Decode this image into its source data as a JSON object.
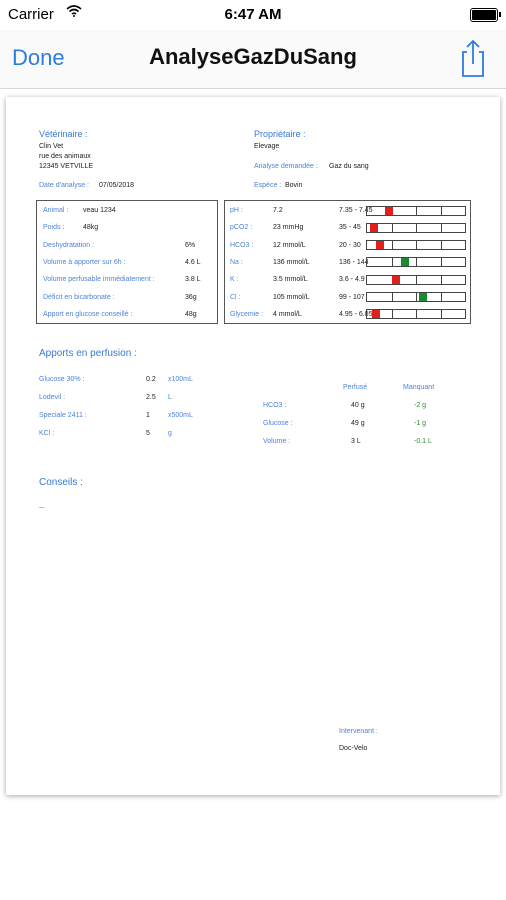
{
  "status_bar": {
    "carrier": "Carrier",
    "time": "6:47 AM"
  },
  "nav": {
    "done": "Done",
    "title": "AnalyseGazDuSang"
  },
  "colors": {
    "accent": "#2b7de1",
    "label_blue": "#4f83d6",
    "marker_red": "#e02020",
    "marker_green": "#1d8a2e",
    "green_text": "#2e8b2e"
  },
  "report": {
    "vet": {
      "label": "Vétérinaire :",
      "name": "Clin Vet",
      "address": "rue des animaux",
      "city": "12345 VETVILLE"
    },
    "date": {
      "label": "Date d'analyse :",
      "value": "07/05/2018"
    },
    "owner": {
      "label": "Propriétaire :",
      "name": "Elevage"
    },
    "requested": {
      "label": "Analyse demandée :",
      "value": "Gaz du sang"
    },
    "species": {
      "label": "Espèce :",
      "value": "Bovin"
    },
    "animal_info": [
      {
        "label": "Animal :",
        "value": "veau 1234"
      },
      {
        "label": "Poids :",
        "value": "48kg"
      },
      {
        "label": "Deshydratation :",
        "value": "6%"
      },
      {
        "label": "Volume à apporter sur 6h :",
        "value": "4.6 L"
      },
      {
        "label": "Volume perfusable immédiatement :",
        "value": "3.8 L"
      },
      {
        "label": "Déficit en bicarbonate :",
        "value": "36g"
      },
      {
        "label": "Apport en glucose conseillé :",
        "value": "48g"
      }
    ],
    "lab_values": [
      {
        "label": "pH :",
        "value": "7.2",
        "range": "7.35 - 7.45",
        "level": 0.2,
        "status": "red"
      },
      {
        "label": "pCO2 :",
        "value": "23 mmHg",
        "range": "35 - 45",
        "level": 0.03,
        "status": "red"
      },
      {
        "label": "HCO3 :",
        "value": "12 mmol/L",
        "range": "20 - 30",
        "level": 0.1,
        "status": "red"
      },
      {
        "label": "Na :",
        "value": "136 mmol/L",
        "range": "136 - 144",
        "level": 0.38,
        "status": "green"
      },
      {
        "label": "K :",
        "value": "3.5 mmol/L",
        "range": "3.6 - 4.9",
        "level": 0.28,
        "status": "red"
      },
      {
        "label": "Cl :",
        "value": "105 mmol/L",
        "range": "99 - 107",
        "level": 0.58,
        "status": "green"
      },
      {
        "label": "Glycemie :",
        "value": "4 mmol/L",
        "range": "4.95 - 6.05",
        "level": 0.06,
        "status": "red"
      }
    ],
    "perfusion": {
      "title": "Apports en perfusion :",
      "items": [
        {
          "label": "Glucose 30% :",
          "qty": "0.2",
          "unit": "x100mL"
        },
        {
          "label": "Lodevil :",
          "qty": "2.5",
          "unit": "L"
        },
        {
          "label": "Speciale 2411 :",
          "qty": "1",
          "unit": "x500mL"
        },
        {
          "label": "KCl :",
          "qty": "5",
          "unit": "g"
        }
      ],
      "headers": {
        "infused": "Perfusé",
        "missing": "Manquant"
      },
      "summary": [
        {
          "label": "HCO3 :",
          "infused": "40 g",
          "missing": "-2 g"
        },
        {
          "label": "Glucose :",
          "infused": "49 g",
          "missing": "-1 g"
        },
        {
          "label": "Volume :",
          "infused": "3 L",
          "missing": "-0.1 L"
        }
      ]
    },
    "advice": {
      "title": "Conseils :",
      "text": "..."
    },
    "intervenant": {
      "label": "Intervenant :",
      "name": "Doc-Velo"
    }
  }
}
